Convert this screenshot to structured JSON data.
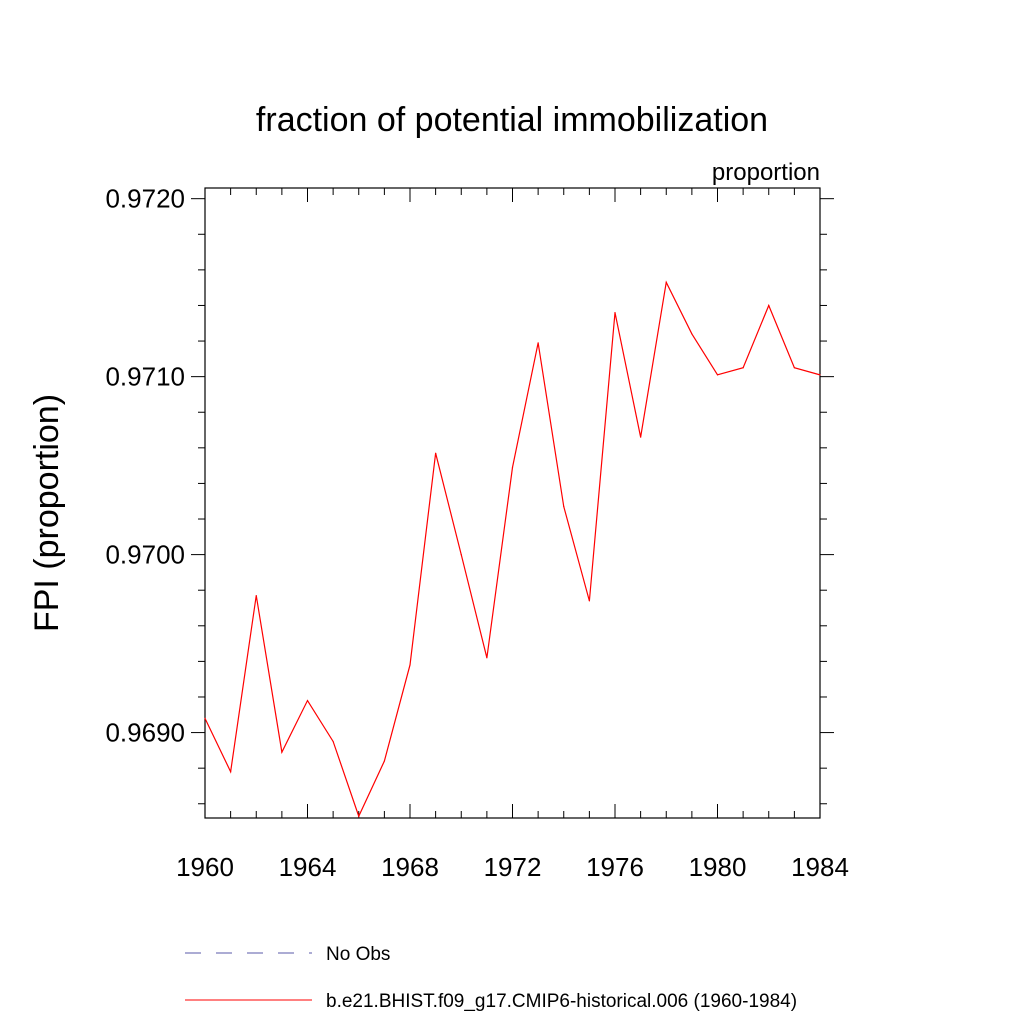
{
  "chart_data": {
    "type": "line",
    "title": "fraction of potential immobilization",
    "units_label": "proportion",
    "ylabel": "FPI  (proportion)",
    "xlabel": "",
    "xlim": [
      1960,
      1984
    ],
    "ylim": [
      0.96852,
      0.97206
    ],
    "x_ticks": [
      "1960",
      "1964",
      "1968",
      "1972",
      "1976",
      "1980",
      "1984"
    ],
    "y_ticks": [
      "0.9690",
      "0.9700",
      "0.9710",
      "0.9720"
    ],
    "x": [
      1960,
      1961,
      1962,
      1963,
      1964,
      1965,
      1966,
      1967,
      1968,
      1969,
      1970,
      1971,
      1972,
      1973,
      1974,
      1975,
      1976,
      1977,
      1978,
      1979,
      1980,
      1981,
      1982,
      1983,
      1984
    ],
    "series": [
      {
        "name": "b.e21.BHIST.f09_g17.CMIP6-historical.006 (1960-1984)",
        "color": "#ff0000",
        "style": "solid",
        "values": [
          0.96908,
          0.96878,
          0.96977,
          0.96889,
          0.96918,
          0.96895,
          0.96853,
          0.96884,
          0.96938,
          0.97057,
          0.97,
          0.96942,
          0.97049,
          0.97119,
          0.97027,
          0.96974,
          0.97136,
          0.97066,
          0.97153,
          0.97124,
          0.97101,
          0.97105,
          0.9714,
          0.97105,
          0.97101
        ]
      }
    ],
    "legend": {
      "placement": "bottom",
      "items": [
        {
          "label": "No Obs",
          "color": "#5a5aa8",
          "style": "dashed"
        },
        {
          "label": "b.e21.BHIST.f09_g17.CMIP6-historical.006 (1960-1984)",
          "color": "#ff0000",
          "style": "solid"
        }
      ]
    },
    "grid": false
  }
}
